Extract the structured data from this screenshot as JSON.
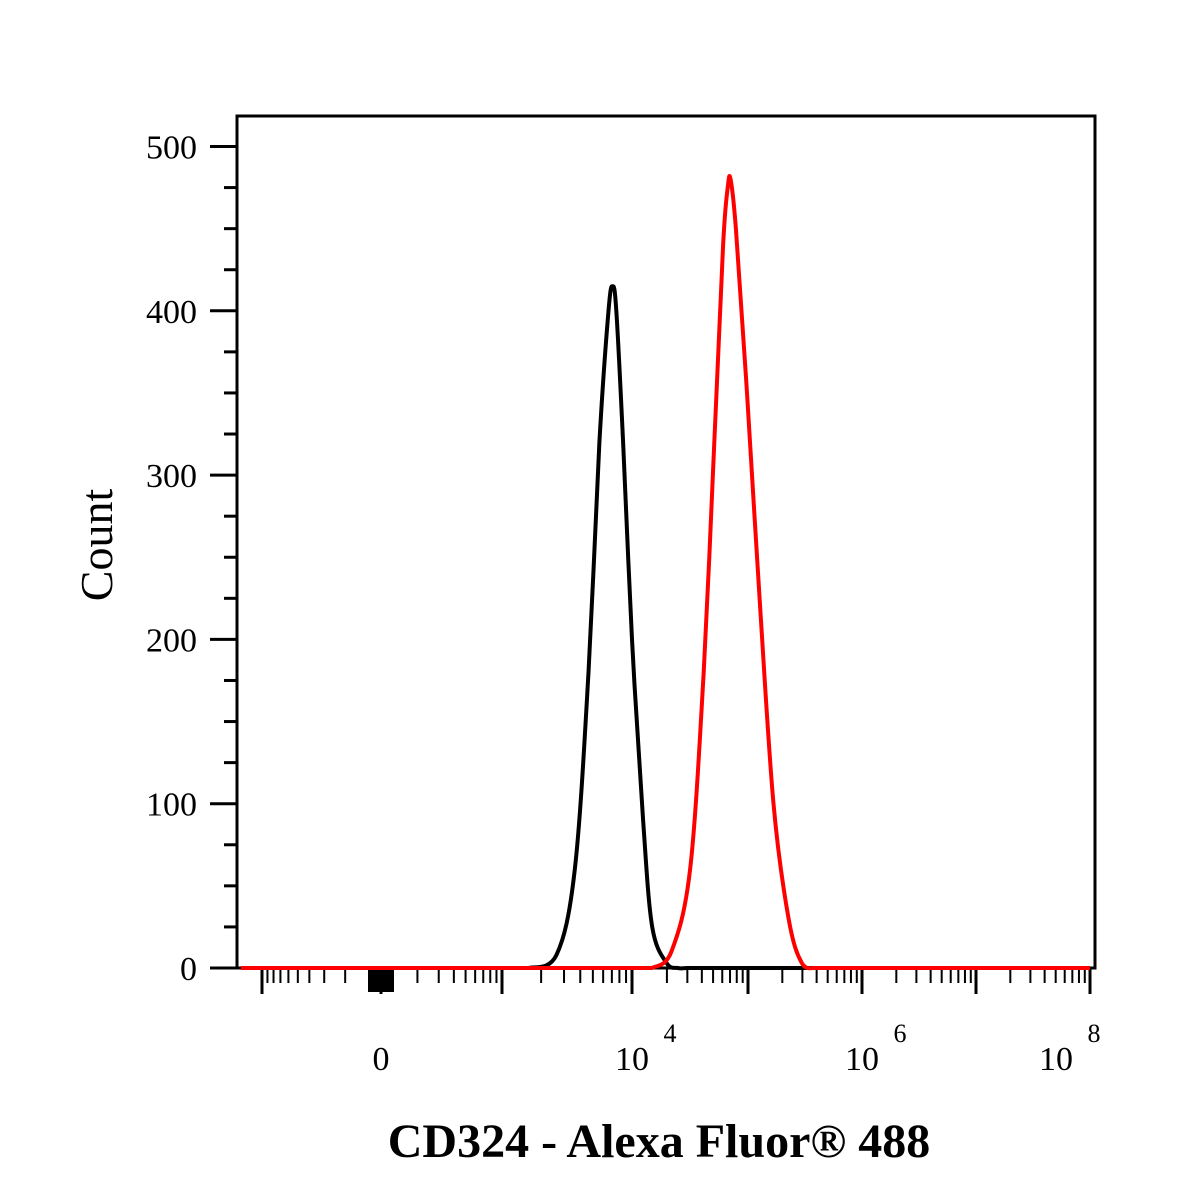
{
  "chart_data": {
    "type": "line",
    "title": "",
    "xlabel": "CD324 - Alexa Fluor® 488",
    "ylabel": "Count",
    "x_scale": "biexponential (linear near 0, log above)",
    "xlim": [
      -1000,
      100000000
    ],
    "ylim": [
      0,
      520
    ],
    "x_tick_labels": [
      {
        "base": "0",
        "exp": ""
      },
      {
        "base": "10",
        "exp": "4"
      },
      {
        "base": "10",
        "exp": "6"
      },
      {
        "base": "10",
        "exp": "8"
      }
    ],
    "y_ticks": [
      0,
      100,
      200,
      300,
      400,
      500
    ],
    "grid": false,
    "legend": "none",
    "series": [
      {
        "color": "#000000",
        "x": [
          1500,
          2500,
          3500,
          4500,
          5500,
          6500,
          7000,
          7500,
          8500,
          10000,
          12500,
          15000,
          20000,
          25000,
          30000
        ],
        "y": [
          0,
          8,
          60,
          180,
          320,
          400,
          415,
          400,
          320,
          200,
          90,
          25,
          3,
          0,
          0
        ]
      },
      {
        "color": "#ff0000",
        "x": [
          15000,
          22000,
          32000,
          42000,
          52000,
          62000,
          68000,
          72000,
          80000,
          100000,
          130000,
          170000,
          230000,
          300000,
          400000
        ],
        "y": [
          0,
          10,
          60,
          180,
          320,
          440,
          475,
          480,
          450,
          350,
          220,
          100,
          30,
          3,
          0
        ]
      }
    ]
  }
}
